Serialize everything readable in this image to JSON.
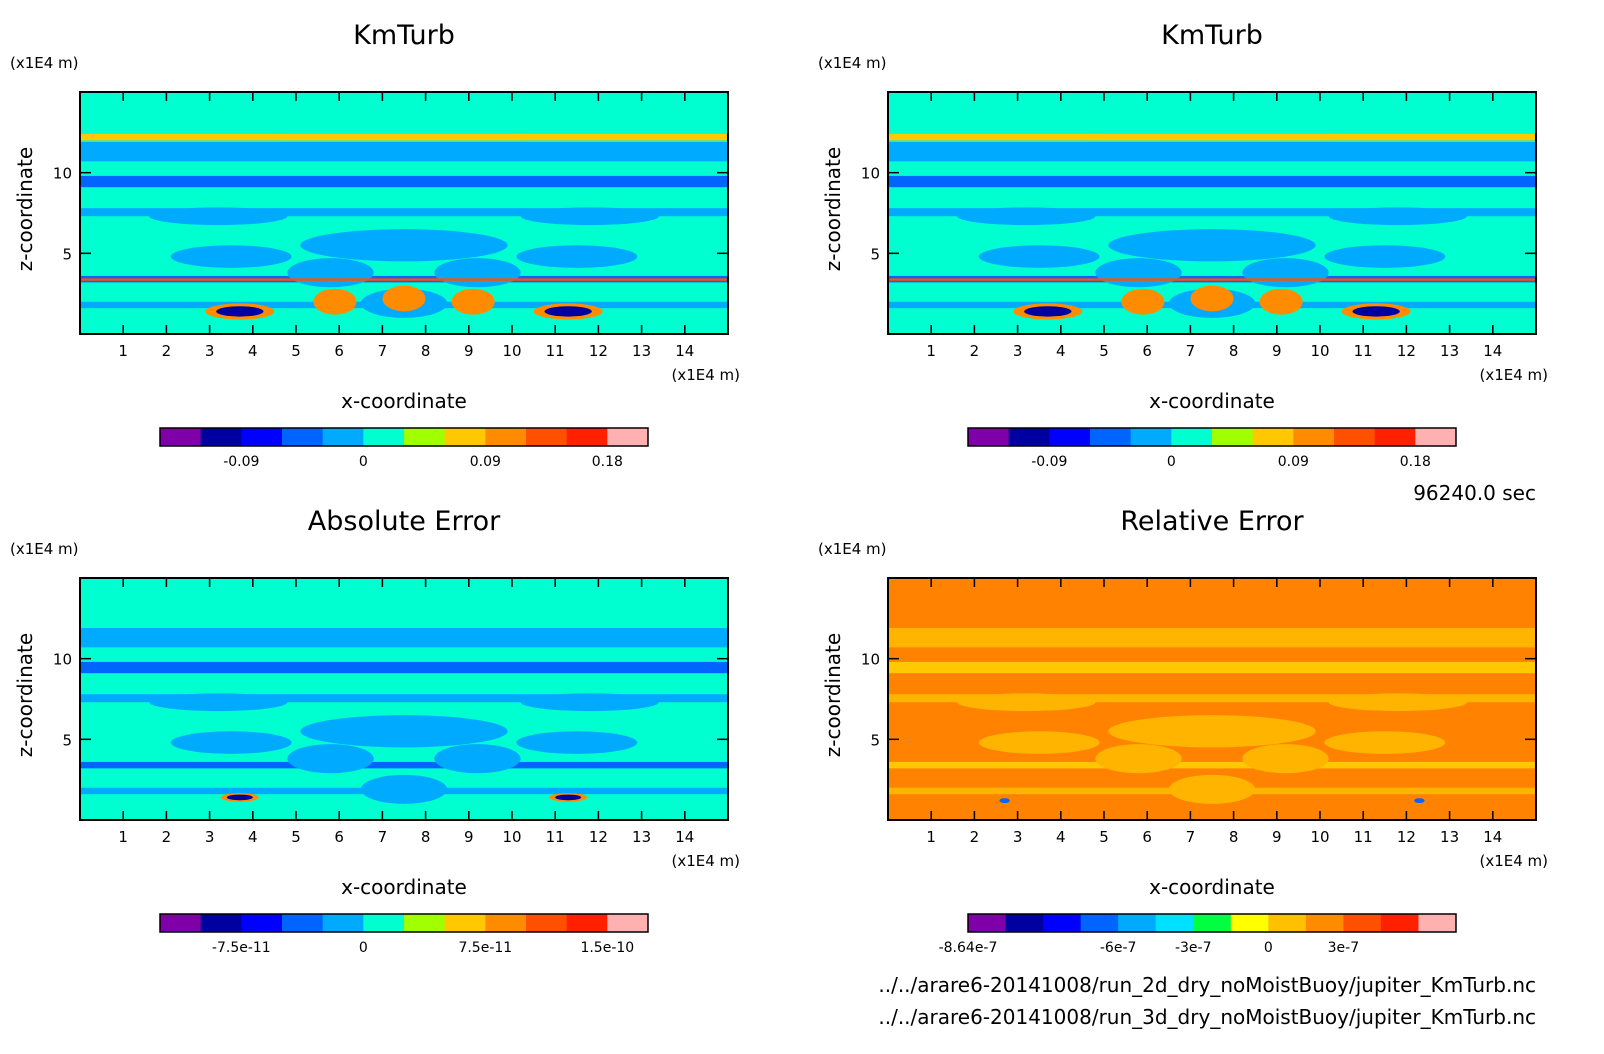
{
  "footer": {
    "time": "96240.0 sec",
    "files": [
      "../../arare6-20141008/run_2d_dry_noMoistBuoy/jupiter_KmTurb.nc",
      "../../arare6-20141008/run_3d_dry_noMoistBuoy/jupiter_KmTurb.nc"
    ]
  },
  "chart_data": [
    {
      "type": "heatmap",
      "title": "KmTurb",
      "xlabel": "x-coordinate",
      "ylabel": "z-coordinate",
      "x_unit": "(x1E4 m)",
      "z_unit": "(x1E4 m)",
      "xlim": [
        0,
        15
      ],
      "ylim": [
        0,
        15
      ],
      "x_ticks": [
        "1",
        "2",
        "3",
        "4",
        "5",
        "6",
        "7",
        "8",
        "9",
        "10",
        "11",
        "12",
        "13",
        "14"
      ],
      "y_ticks": [
        "5",
        "10"
      ],
      "background": "#00ffd0",
      "colorbar": {
        "colors": [
          "#7f00a8",
          "#0000a0",
          "#0000ff",
          "#0064ff",
          "#00aaff",
          "#00ffd0",
          "#a0ff00",
          "#ffc800",
          "#ff8c00",
          "#ff5000",
          "#ff2000",
          "#ffb0b0"
        ],
        "tick_labels": [
          "-0.09",
          "0",
          "0.09",
          "0.18"
        ]
      }
    },
    {
      "type": "heatmap",
      "title": "KmTurb",
      "xlabel": "x-coordinate",
      "ylabel": "z-coordinate",
      "x_unit": "(x1E4 m)",
      "z_unit": "(x1E4 m)",
      "xlim": [
        0,
        15
      ],
      "ylim": [
        0,
        15
      ],
      "x_ticks": [
        "1",
        "2",
        "3",
        "4",
        "5",
        "6",
        "7",
        "8",
        "9",
        "10",
        "11",
        "12",
        "13",
        "14"
      ],
      "y_ticks": [
        "5",
        "10"
      ],
      "background": "#00ffd0",
      "colorbar": {
        "colors": [
          "#7f00a8",
          "#0000a0",
          "#0000ff",
          "#0064ff",
          "#00aaff",
          "#00ffd0",
          "#a0ff00",
          "#ffc800",
          "#ff8c00",
          "#ff5000",
          "#ff2000",
          "#ffb0b0"
        ],
        "tick_labels": [
          "-0.09",
          "0",
          "0.09",
          "0.18"
        ]
      }
    },
    {
      "type": "heatmap",
      "title": "Absolute Error",
      "xlabel": "x-coordinate",
      "ylabel": "z-coordinate",
      "x_unit": "(x1E4 m)",
      "z_unit": "(x1E4 m)",
      "xlim": [
        0,
        15
      ],
      "ylim": [
        0,
        15
      ],
      "x_ticks": [
        "1",
        "2",
        "3",
        "4",
        "5",
        "6",
        "7",
        "8",
        "9",
        "10",
        "11",
        "12",
        "13",
        "14"
      ],
      "y_ticks": [
        "5",
        "10"
      ],
      "background": "#00ffd0",
      "colorbar": {
        "colors": [
          "#7f00a8",
          "#0000a0",
          "#0000ff",
          "#0064ff",
          "#00aaff",
          "#00ffd0",
          "#a0ff00",
          "#ffc800",
          "#ff8c00",
          "#ff5000",
          "#ff2000",
          "#ffb0b0"
        ],
        "tick_labels": [
          "-7.5e-11",
          "0",
          "7.5e-11",
          "1.5e-10"
        ]
      }
    },
    {
      "type": "heatmap",
      "title": "Relative Error",
      "xlabel": "x-coordinate",
      "ylabel": "z-coordinate",
      "x_unit": "(x1E4 m)",
      "z_unit": "(x1E4 m)",
      "xlim": [
        0,
        15
      ],
      "ylim": [
        0,
        15
      ],
      "x_ticks": [
        "1",
        "2",
        "3",
        "4",
        "5",
        "6",
        "7",
        "8",
        "9",
        "10",
        "11",
        "12",
        "13",
        "14"
      ],
      "y_ticks": [
        "5",
        "10"
      ],
      "background": "#ff8200",
      "colorbar": {
        "colors": [
          "#7f00a8",
          "#0000a0",
          "#0000ff",
          "#0064ff",
          "#00aaff",
          "#00e0ff",
          "#00ff40",
          "#ffff00",
          "#ffc000",
          "#ff8c00",
          "#ff5000",
          "#ff2000",
          "#ffb0b0"
        ],
        "tick_labels": [
          "-8.64e-7",
          "-6e-7",
          "-3e-7",
          "0",
          "3e-7"
        ]
      }
    }
  ]
}
